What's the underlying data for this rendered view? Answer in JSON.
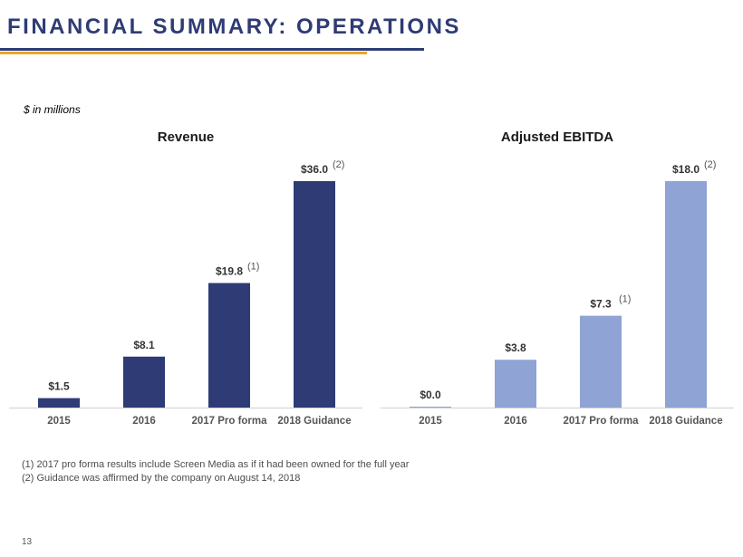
{
  "slide": {
    "title": "FINANCIAL SUMMARY: OPERATIONS",
    "units_note": "$ in millions",
    "page_number": "13",
    "accent_colors": {
      "title": "#2E3B75",
      "rule_primary": "#2E3B75",
      "rule_secondary": "#E8A91D"
    }
  },
  "footnotes": [
    "(1) 2017 pro forma results include Screen Media as if it had been owned for the full year",
    "(2) Guidance was affirmed by the company on August 14, 2018"
  ],
  "chart_data": [
    {
      "type": "bar",
      "title": "Revenue",
      "categories": [
        "2015",
        "2016",
        "2017 Pro forma",
        "2018 Guidance"
      ],
      "values": [
        1.5,
        8.1,
        19.8,
        36.0
      ],
      "data_labels": [
        "$1.5",
        "$8.1",
        "$19.8",
        "$36.0"
      ],
      "label_notes": [
        "",
        "",
        "(1)",
        "(2)"
      ],
      "ylim": [
        0,
        36.0
      ],
      "grid": false,
      "color": "#2E3B75"
    },
    {
      "type": "bar",
      "title": "Adjusted EBITDA",
      "categories": [
        "2015",
        "2016",
        "2017 Pro forma",
        "2018 Guidance"
      ],
      "values": [
        0.0,
        3.8,
        7.3,
        18.0
      ],
      "data_labels": [
        "$0.0",
        "$3.8",
        "$7.3",
        "$18.0"
      ],
      "label_notes": [
        "",
        "",
        "(1)",
        "(2)"
      ],
      "ylim": [
        0,
        18.0
      ],
      "grid": false,
      "color": "#8FA3D4"
    }
  ]
}
